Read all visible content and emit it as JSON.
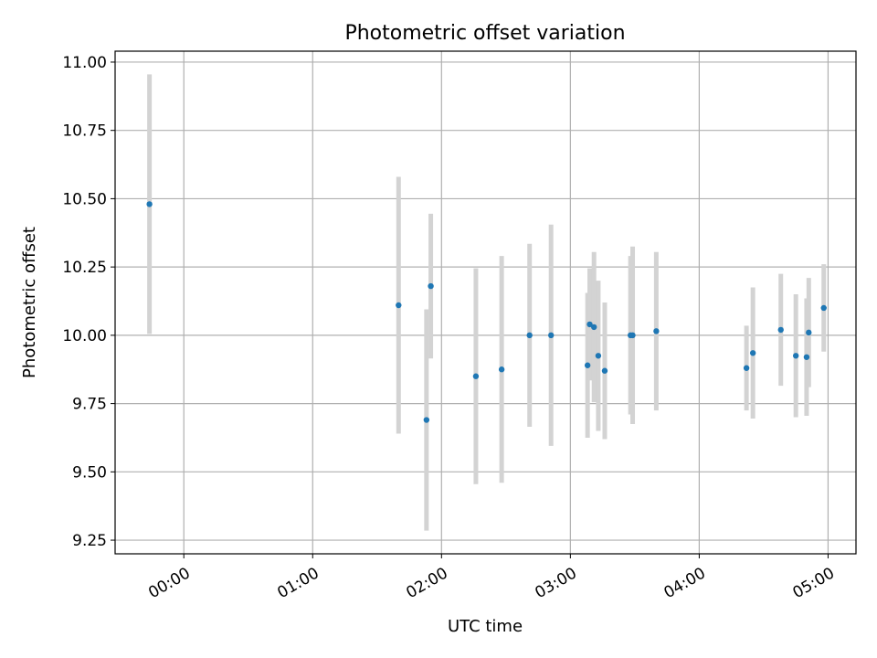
{
  "chart_data": {
    "type": "scatter",
    "title": "Photometric offset variation",
    "xlabel": "UTC time",
    "ylabel": "Photometric offset",
    "x_unit": "UTC time (HH:MM)",
    "xlim": [
      "23:28",
      "05:13"
    ],
    "ylim": [
      9.2,
      11.04
    ],
    "xticks": [
      "00:00",
      "01:00",
      "02:00",
      "03:00",
      "04:00",
      "05:00"
    ],
    "yticks": [
      "9.25",
      "9.50",
      "9.75",
      "10.00",
      "10.25",
      "10.50",
      "10.75",
      "11.00"
    ],
    "grid": true,
    "marker_color": "#1f77b4",
    "errorbar_color": "#d3d3d3",
    "points": [
      {
        "x": "23:44",
        "y": 10.48,
        "yerr": 0.475
      },
      {
        "x": "01:40",
        "y": 10.11,
        "yerr": 0.47
      },
      {
        "x": "01:53",
        "y": 9.69,
        "yerr": 0.405
      },
      {
        "x": "01:55",
        "y": 10.18,
        "yerr": 0.265
      },
      {
        "x": "02:16",
        "y": 9.85,
        "yerr": 0.395
      },
      {
        "x": "02:28",
        "y": 9.875,
        "yerr": 0.415
      },
      {
        "x": "02:41",
        "y": 10.0,
        "yerr": 0.335
      },
      {
        "x": "02:51",
        "y": 10.0,
        "yerr": 0.405
      },
      {
        "x": "03:08",
        "y": 9.89,
        "yerr": 0.265
      },
      {
        "x": "03:09",
        "y": 10.04,
        "yerr": 0.205
      },
      {
        "x": "03:11",
        "y": 10.03,
        "yerr": 0.275
      },
      {
        "x": "03:13",
        "y": 9.925,
        "yerr": 0.275
      },
      {
        "x": "03:16",
        "y": 9.87,
        "yerr": 0.25
      },
      {
        "x": "03:28",
        "y": 10.0,
        "yerr": 0.29
      },
      {
        "x": "03:29",
        "y": 10.0,
        "yerr": 0.325
      },
      {
        "x": "03:40",
        "y": 10.015,
        "yerr": 0.29
      },
      {
        "x": "04:22",
        "y": 9.88,
        "yerr": 0.155
      },
      {
        "x": "04:25",
        "y": 9.935,
        "yerr": 0.24
      },
      {
        "x": "04:38",
        "y": 10.02,
        "yerr": 0.205
      },
      {
        "x": "04:45",
        "y": 9.925,
        "yerr": 0.225
      },
      {
        "x": "04:50",
        "y": 9.92,
        "yerr": 0.215
      },
      {
        "x": "04:51",
        "y": 10.01,
        "yerr": 0.2
      },
      {
        "x": "04:58",
        "y": 10.1,
        "yerr": 0.16
      }
    ]
  }
}
